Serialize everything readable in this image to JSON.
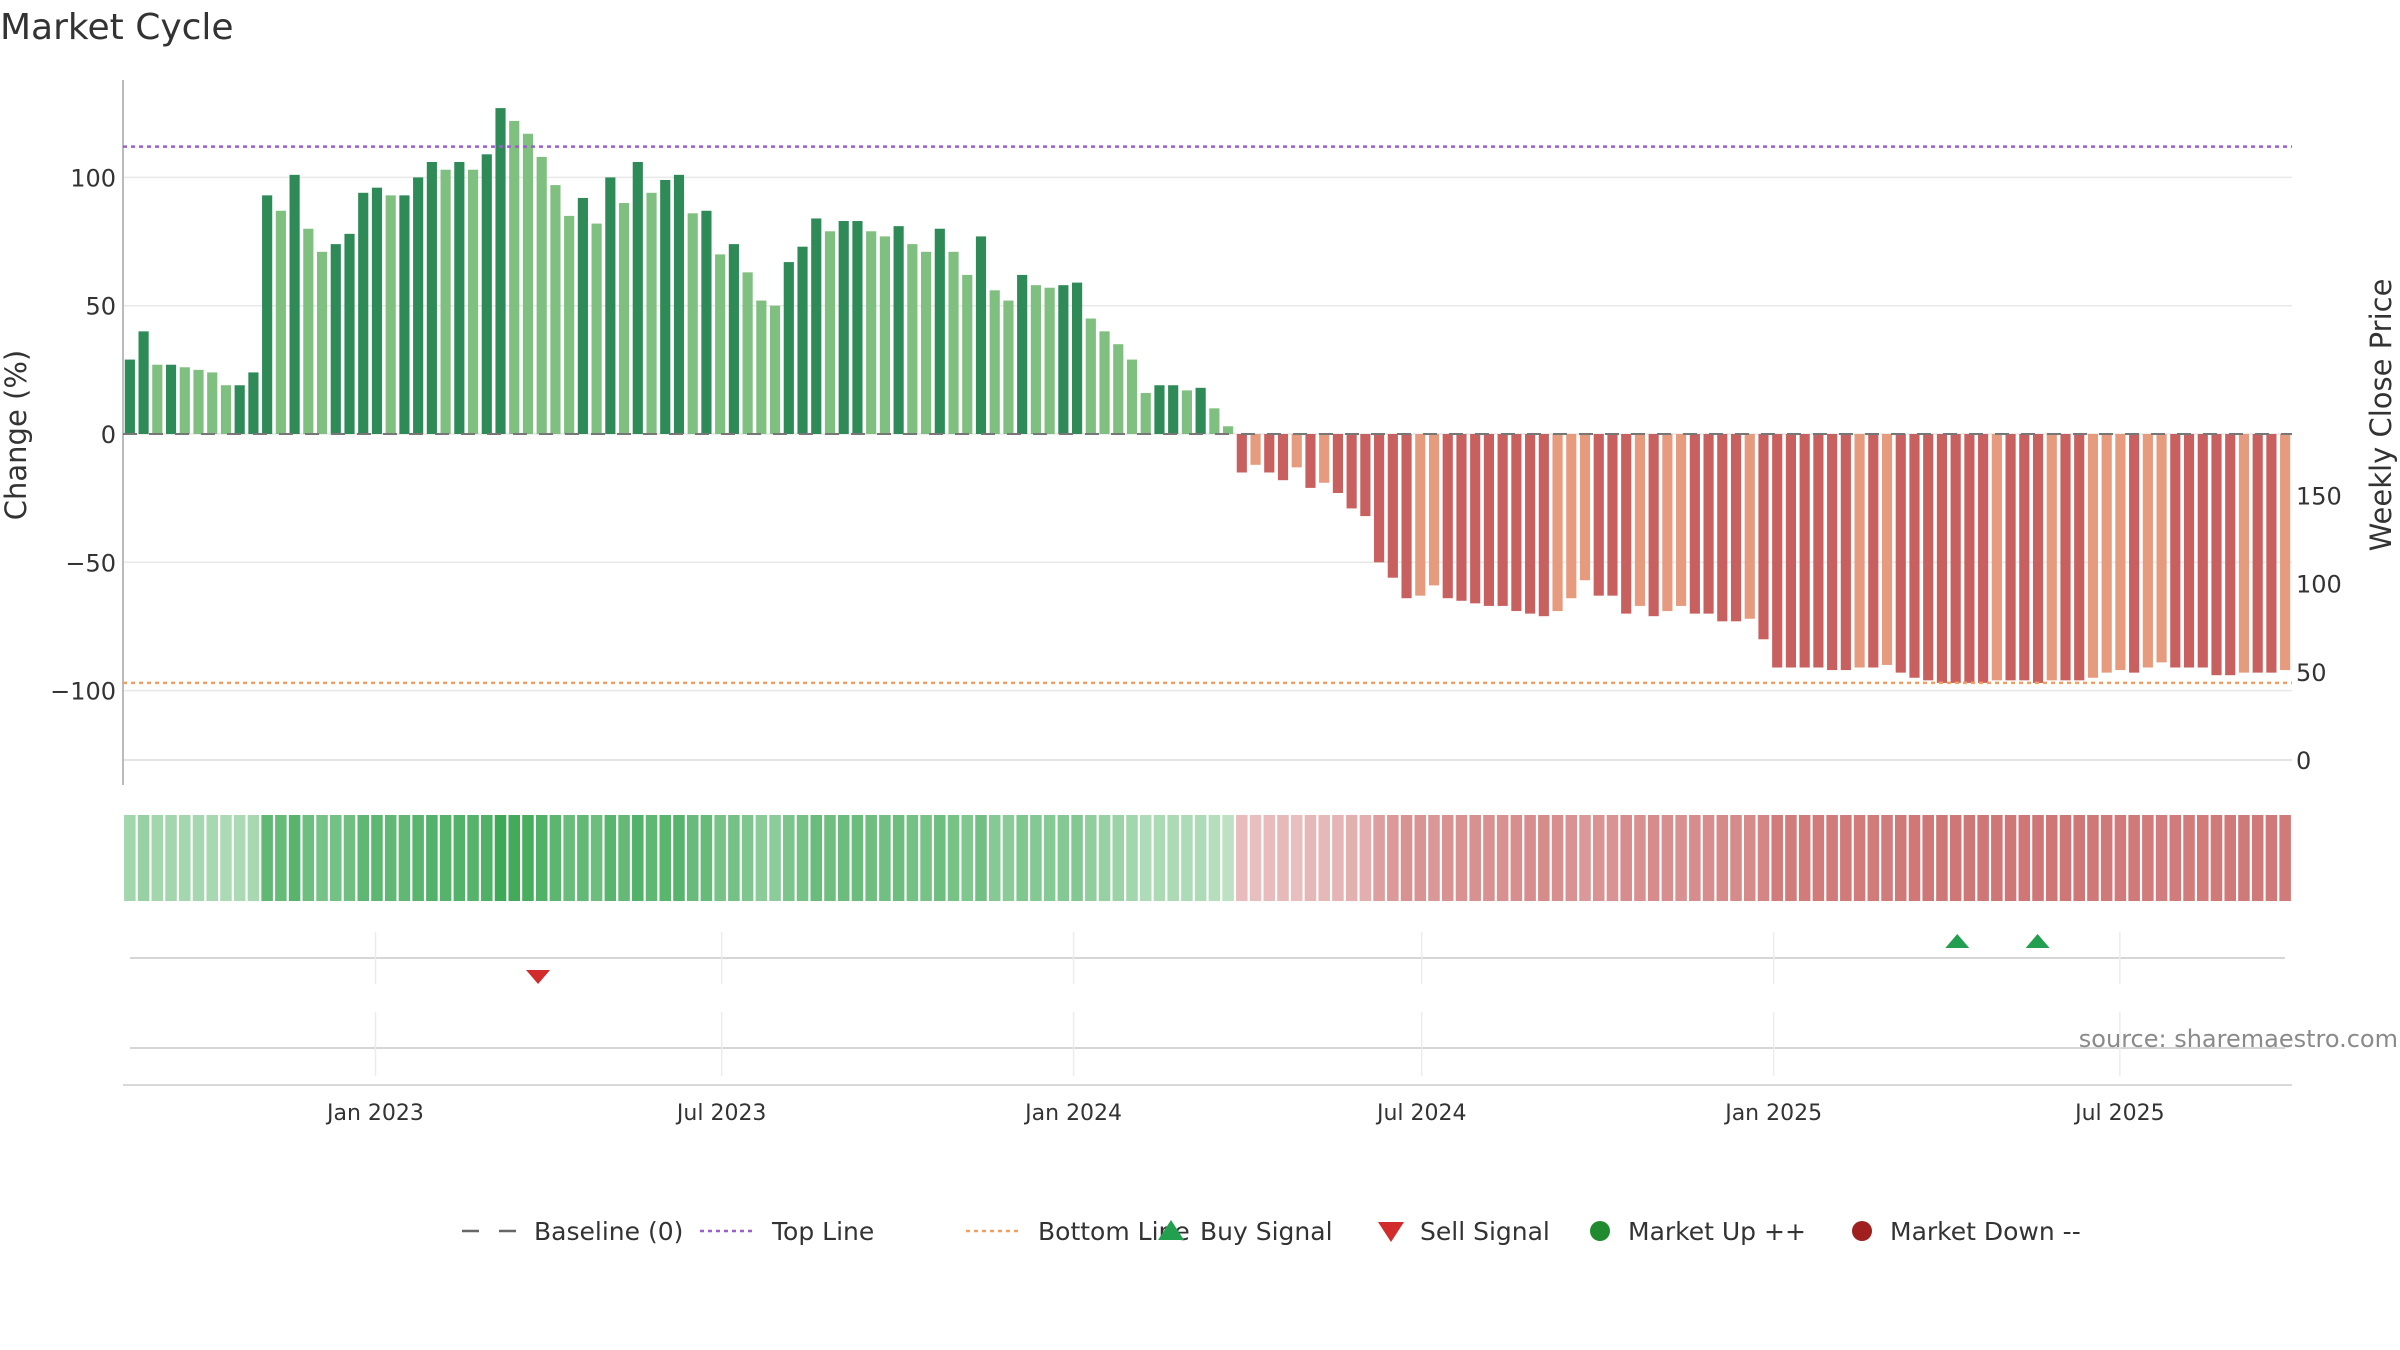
{
  "chart_data": {
    "type": "bar",
    "title": "Market Cycle",
    "ylabel_left": "Change (%)",
    "ylabel_right": "Weekly Close Price",
    "ylim_left": [
      -138,
      138
    ],
    "ylim_right": [
      -6,
      190
    ],
    "yticks_left": [
      100,
      50,
      0,
      -50,
      -100
    ],
    "yticks_right": [
      150,
      100,
      50,
      0
    ],
    "top_line": 112,
    "bottom_line": -97,
    "baseline": 0,
    "x_date_ticks": [
      {
        "date": "2023-01-01",
        "label": "Jan 2023"
      },
      {
        "date": "2023-07-01",
        "label": "Jul 2023"
      },
      {
        "date": "2024-01-01",
        "label": "Jan 2024"
      },
      {
        "date": "2024-07-01",
        "label": "Jul 2024"
      },
      {
        "date": "2025-01-01",
        "label": "Jan 2025"
      },
      {
        "date": "2025-07-01",
        "label": "Jul 2025"
      }
    ],
    "x_range": [
      "2022-08-22",
      "2025-09-29"
    ],
    "series_change_percent": [
      29,
      40,
      27,
      27,
      26,
      25,
      24,
      19,
      19,
      24,
      93,
      87,
      101,
      80,
      71,
      74,
      78,
      94,
      96,
      93,
      93,
      100,
      106,
      103,
      106,
      103,
      109,
      127,
      122,
      117,
      108,
      97,
      85,
      92,
      82,
      100,
      90,
      106,
      94,
      99,
      101,
      86,
      87,
      70,
      74,
      63,
      52,
      50,
      67,
      73,
      84,
      79,
      83,
      83,
      79,
      77,
      81,
      74,
      71,
      80,
      71,
      62,
      77,
      56,
      52,
      62,
      58,
      57,
      58,
      59,
      45,
      40,
      35,
      29,
      16,
      19,
      19,
      17,
      18,
      10,
      3,
      -15,
      -12,
      -15,
      -18,
      -13,
      -21,
      -19,
      -23,
      -29,
      -32,
      -50,
      -56,
      -64,
      -63,
      -59,
      -64,
      -65,
      -66,
      -67,
      -67,
      -69,
      -70,
      -71,
      -69,
      -64,
      -57,
      -63,
      -63,
      -70,
      -67,
      -71,
      -69,
      -67,
      -70,
      -70,
      -73,
      -73,
      -72,
      -80,
      -91,
      -91,
      -91,
      -91,
      -92,
      -92,
      -91,
      -91,
      -90,
      -93,
      -95,
      -96,
      -97,
      -97,
      -97,
      -97,
      -96,
      -96,
      -96,
      -97,
      -96,
      -96,
      -96,
      -95,
      -93,
      -92,
      -93,
      -91,
      -89,
      -91,
      -91,
      -91,
      -94,
      -94,
      -93,
      -93,
      -93,
      -92
    ],
    "bar_colors": {
      "up_strong": "#2e8b57",
      "up_weak": "#7fbf7f",
      "down_strong": "#c96060",
      "down_weak": "#e69a7e"
    },
    "heat_strip_colors": {
      "up_light": "#bfe3c6",
      "up_dark": "#3ea856",
      "down_light": "#ecc9c9",
      "down_dark": "#cf7676"
    },
    "signals": {
      "buy": [
        "2025-04-07",
        "2025-05-19"
      ],
      "sell": [
        "2023-03-27"
      ]
    },
    "legend": [
      {
        "label": "Baseline (0)",
        "kind": "dash-long",
        "color": "#666666"
      },
      {
        "label": "Top Line",
        "kind": "dotted",
        "color": "#9b5fcc"
      },
      {
        "label": "Bottom Line",
        "kind": "dotted",
        "color": "#f0a060"
      },
      {
        "label": "Buy Signal",
        "kind": "triangle-up",
        "color": "#22a050"
      },
      {
        "label": "Sell Signal",
        "kind": "triangle-down",
        "color": "#d22b2b"
      },
      {
        "label": "Market Up ++",
        "kind": "circle",
        "color": "#1f8b2e"
      },
      {
        "label": "Market Down --",
        "kind": "circle",
        "color": "#a01f1f"
      }
    ],
    "legend_placement": "bottom-center",
    "grid": true,
    "source": "source: sharemaestro.com"
  }
}
